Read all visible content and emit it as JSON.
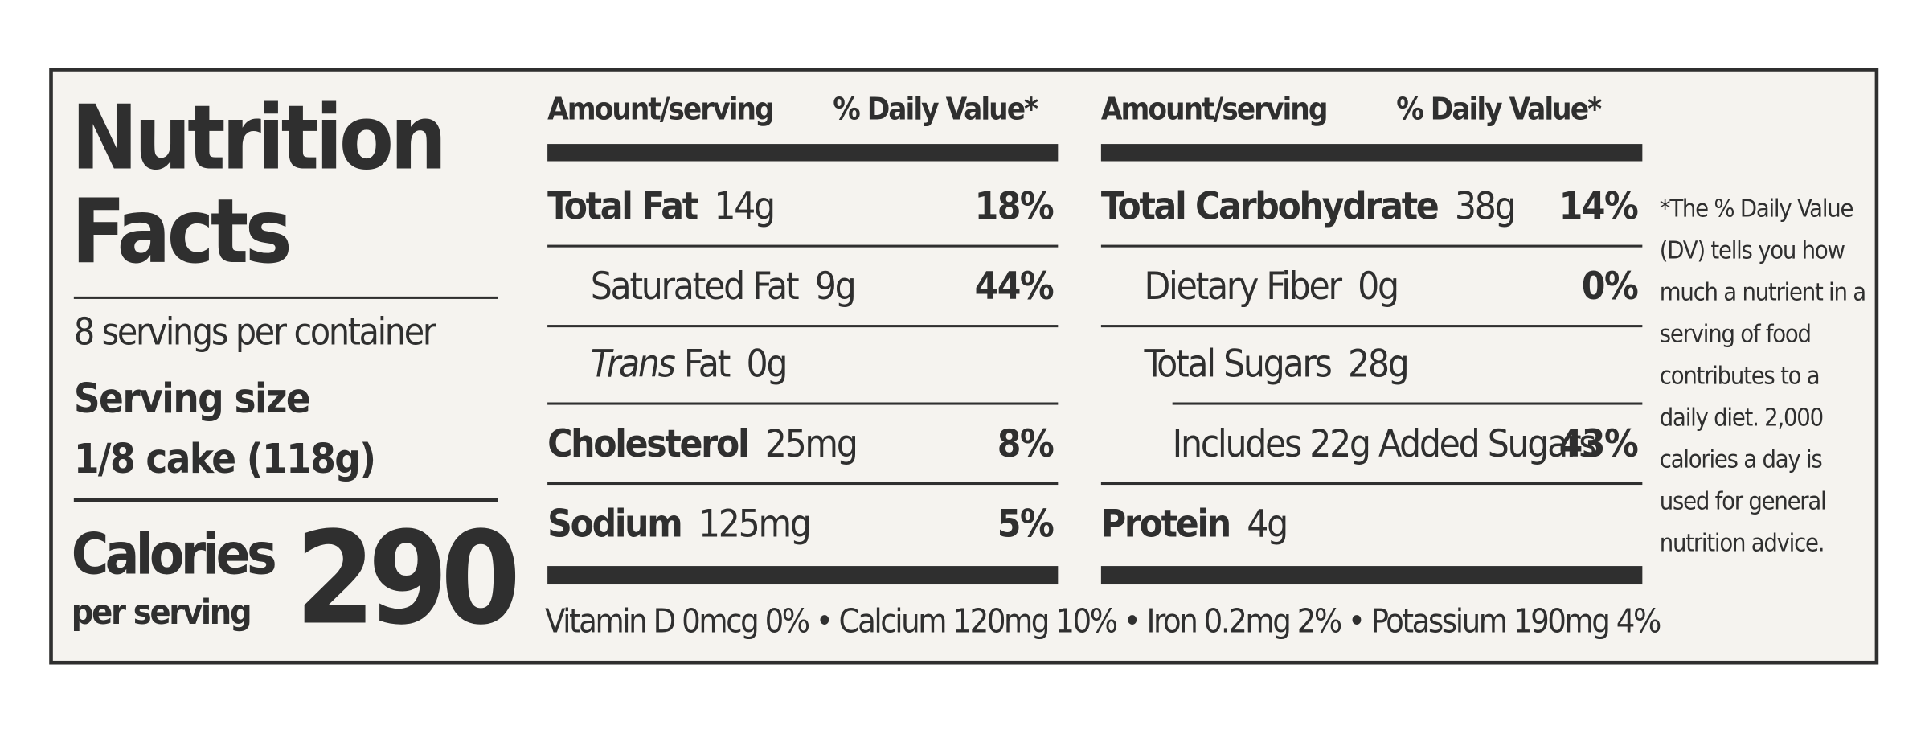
{
  "title": "Nutrition Facts",
  "servings": "8 servings per container",
  "serving_size": {
    "label": "Serving size",
    "value": "1/8 cake (118g)"
  },
  "calories": {
    "label": "Calories",
    "sublabel": "per serving",
    "value": "290"
  },
  "columns": [
    {
      "header": {
        "amount": "Amount/serving",
        "dv": "% Daily Value*"
      },
      "rows": [
        {
          "name": "Total Fat",
          "amount": "14g",
          "dv": "18%",
          "bold": true,
          "indent": 0
        },
        {
          "name": "Saturated Fat",
          "amount": "9g",
          "dv": "44%",
          "bold": false,
          "indent": 1
        },
        {
          "name_italic": "Trans",
          "name": "Fat",
          "amount": "0g",
          "bold": false,
          "indent": 1
        },
        {
          "name": "Cholesterol",
          "amount": "25mg",
          "dv": "8%",
          "bold": true,
          "indent": 0
        },
        {
          "name": "Sodium",
          "amount": "125mg",
          "dv": "5%",
          "bold": true,
          "indent": 0
        }
      ]
    },
    {
      "header": {
        "amount": "Amount/serving",
        "dv": "% Daily Value*"
      },
      "rows": [
        {
          "name": "Total Carbohydrate",
          "amount": "38g",
          "dv": "14%",
          "bold": true,
          "indent": 0
        },
        {
          "name": "Dietary Fiber",
          "amount": "0g",
          "dv": "0%",
          "bold": false,
          "indent": 1
        },
        {
          "name": "Total Sugars",
          "amount": "28g",
          "bold": false,
          "indent": 1
        },
        {
          "name": "Includes 22g Added Sugars",
          "dv": "43%",
          "bold": false,
          "indent": 2
        },
        {
          "name": "Protein",
          "amount": "4g",
          "bold": true,
          "indent": 0
        }
      ]
    }
  ],
  "vitamins": [
    "Vitamin D 0mcg 0%",
    "Calcium 120mg 10%",
    "Iron 0.2mg 2%",
    "Potassium 190mg 4%"
  ],
  "footnote": "*The % Daily Value (DV) tells you how much a nutrient in a serving of food contributes to a daily diet. 2,000 calories a day is used for general nutrition advice."
}
